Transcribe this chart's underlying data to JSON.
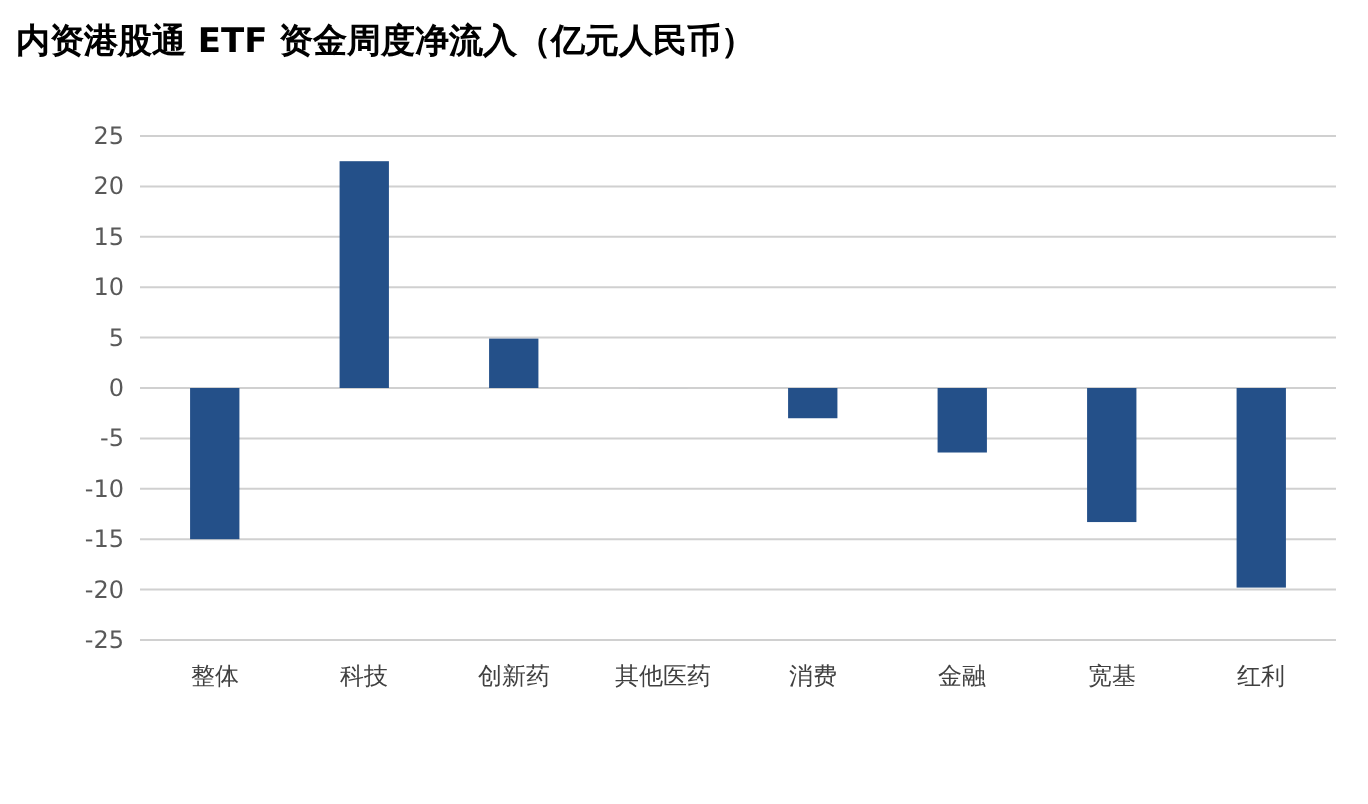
{
  "chart_data": {
    "type": "bar",
    "title": "内资港股通 ETF 资金周度净流入（亿元人民币）",
    "categories": [
      "整体",
      "科技",
      "创新药",
      "其他医药",
      "消费",
      "金融",
      "宽基",
      "红利"
    ],
    "values": [
      -15,
      22.5,
      4.9,
      0,
      -3,
      -6.4,
      -13.3,
      -19.8
    ],
    "color": "#245089",
    "ylim": [
      -25,
      25
    ],
    "yticks": [
      -25,
      -20,
      -15,
      -10,
      -5,
      0,
      5,
      10,
      15,
      20,
      25
    ],
    "grid": "y"
  }
}
